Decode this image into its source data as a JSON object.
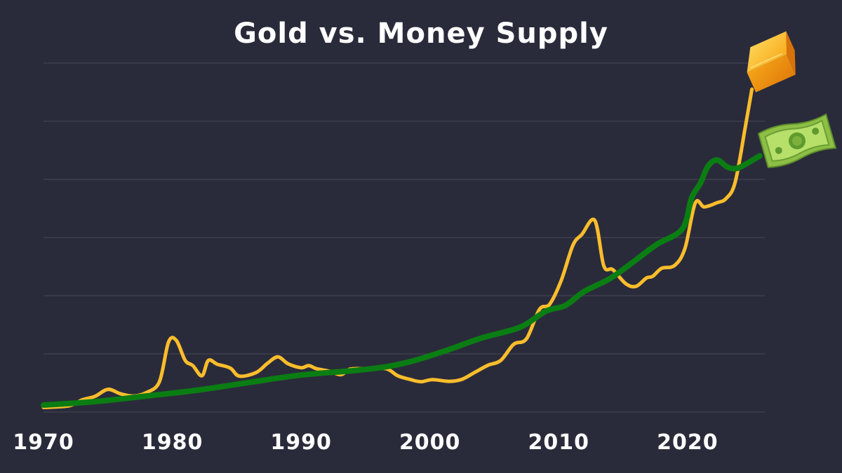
{
  "chart_data": {
    "type": "line",
    "title": "Gold vs. Money Supply",
    "xlabel": "",
    "ylabel": "",
    "xlim": [
      1970,
      2026
    ],
    "ylim": [
      0,
      100
    ],
    "grid": true,
    "legend": "none",
    "x_ticks": [
      1970,
      1980,
      1990,
      2000,
      2010,
      2020
    ],
    "series": [
      {
        "color": "#fbbd2c",
        "icon": "gold-bar-icon",
        "points": [
          [
            1970,
            1.3
          ],
          [
            1972,
            1.8
          ],
          [
            1973,
            3.5
          ],
          [
            1974,
            4.5
          ],
          [
            1975,
            6.5
          ],
          [
            1976,
            5.2
          ],
          [
            1977,
            4.6
          ],
          [
            1978,
            5.6
          ],
          [
            1979,
            8.7
          ],
          [
            1979.7,
            20.0
          ],
          [
            1980.3,
            20.6
          ],
          [
            1981,
            14.8
          ],
          [
            1981.6,
            13.3
          ],
          [
            1982.3,
            10.4
          ],
          [
            1982.8,
            14.8
          ],
          [
            1983.5,
            13.7
          ],
          [
            1984.5,
            12.6
          ],
          [
            1985.2,
            10.3
          ],
          [
            1986.5,
            11.3
          ],
          [
            1987.4,
            14.0
          ],
          [
            1988.2,
            15.8
          ],
          [
            1989,
            13.8
          ],
          [
            1990,
            12.7
          ],
          [
            1990.6,
            13.3
          ],
          [
            1991.2,
            12.4
          ],
          [
            1992.2,
            11.7
          ],
          [
            1993.1,
            10.7
          ],
          [
            1993.8,
            12.3
          ],
          [
            1995,
            12.4
          ],
          [
            1996.6,
            12.4
          ],
          [
            1997.5,
            10.4
          ],
          [
            1998.5,
            9.3
          ],
          [
            1999.3,
            8.7
          ],
          [
            2000.2,
            9.3
          ],
          [
            2001.5,
            8.8
          ],
          [
            2002.5,
            9.4
          ],
          [
            2003.5,
            11.4
          ],
          [
            2004.5,
            13.4
          ],
          [
            2005.5,
            14.8
          ],
          [
            2006.5,
            19.4
          ],
          [
            2007.5,
            21.0
          ],
          [
            2008.5,
            29.4
          ],
          [
            2009.3,
            30.9
          ],
          [
            2010.2,
            37.8
          ],
          [
            2011.1,
            47.8
          ],
          [
            2011.8,
            50.9
          ],
          [
            2012.8,
            54.9
          ],
          [
            2013.5,
            41.9
          ],
          [
            2014.2,
            40.8
          ],
          [
            2015.2,
            36.8
          ],
          [
            2016,
            36.0
          ],
          [
            2016.8,
            38.4
          ],
          [
            2017.3,
            38.9
          ],
          [
            2018,
            41.2
          ],
          [
            2019,
            42.0
          ],
          [
            2019.8,
            46.9
          ],
          [
            2020.6,
            59.9
          ],
          [
            2021.3,
            58.8
          ],
          [
            2022.3,
            60.0
          ],
          [
            2023,
            61.2
          ],
          [
            2023.7,
            65.9
          ],
          [
            2024.5,
            82.0
          ],
          [
            2025.0,
            92.5
          ]
        ]
      },
      {
        "color": "#0a7d13",
        "icon": "dollar-bill-icon",
        "points": [
          [
            1970,
            2.0
          ],
          [
            1974,
            3.0
          ],
          [
            1978,
            4.6
          ],
          [
            1982,
            6.3
          ],
          [
            1986,
            8.5
          ],
          [
            1990,
            10.6
          ],
          [
            1995,
            12.2
          ],
          [
            1998,
            14.0
          ],
          [
            2001,
            17.3
          ],
          [
            2004,
            21.2
          ],
          [
            2007,
            24.3
          ],
          [
            2009,
            28.9
          ],
          [
            2010.5,
            30.5
          ],
          [
            2012,
            34.6
          ],
          [
            2014,
            38.3
          ],
          [
            2016,
            43.6
          ],
          [
            2017.6,
            48.0
          ],
          [
            2019.6,
            52.5
          ],
          [
            2020.3,
            61.2
          ],
          [
            2021,
            65.6
          ],
          [
            2021.6,
            70.5
          ],
          [
            2022.3,
            72.2
          ],
          [
            2023.1,
            70.2
          ],
          [
            2023.8,
            69.8
          ],
          [
            2024.6,
            71.2
          ],
          [
            2025.6,
            73.4
          ]
        ]
      }
    ]
  }
}
